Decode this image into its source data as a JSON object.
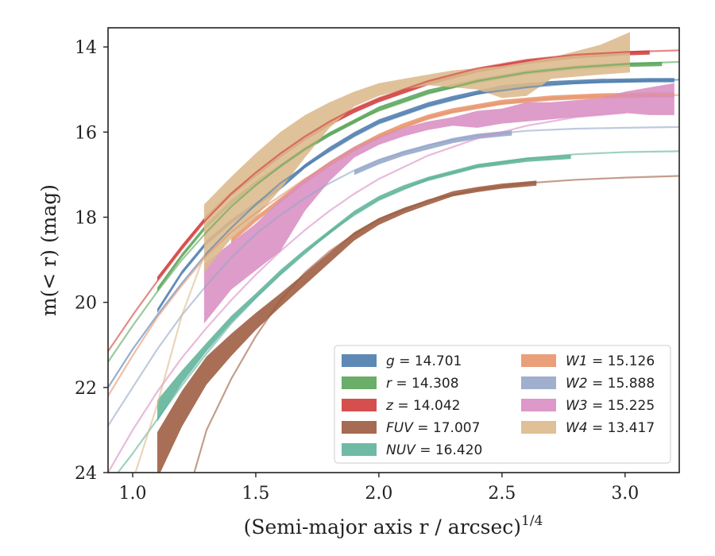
{
  "chart_data": {
    "type": "line",
    "xlabel": "(Semi-major axis r / arcsec)",
    "xlabel_sup": "1/4",
    "ylabel": "m(< r) (mag)",
    "xlim": [
      0.9,
      3.22
    ],
    "ylim": [
      24,
      13.55
    ],
    "y_inverted": true,
    "x_ticks": [
      1.0,
      1.5,
      2.0,
      2.5,
      3.0
    ],
    "x_tick_labels": [
      "1.0",
      "1.5",
      "2.0",
      "2.5",
      "3.0"
    ],
    "y_ticks": [
      14,
      16,
      18,
      20,
      22,
      24
    ],
    "y_tick_labels": [
      "14",
      "16",
      "18",
      "20",
      "22",
      "24"
    ],
    "grid": false,
    "legend_position": "lower-right",
    "legend": [
      {
        "key": "g",
        "var": "g",
        "value": "14.701"
      },
      {
        "key": "r",
        "var": "r",
        "value": "14.308"
      },
      {
        "key": "z",
        "var": "z",
        "value": "14.042"
      },
      {
        "key": "FUV",
        "var": "FUV",
        "value": "17.007"
      },
      {
        "key": "NUV",
        "var": "NUV",
        "value": "16.420"
      },
      {
        "key": "W1",
        "var": "W1",
        "value": "15.126"
      },
      {
        "key": "W2",
        "var": "W2",
        "value": "15.888"
      },
      {
        "key": "W3",
        "var": "W3",
        "value": "15.225"
      },
      {
        "key": "W4",
        "var": "W4",
        "value": "13.417"
      }
    ],
    "series": [
      {
        "key": "g",
        "color": "#4c7cad",
        "data_x": [
          1.1,
          1.2,
          1.3,
          1.4,
          1.5,
          1.6,
          1.7,
          1.8,
          1.9,
          2.0,
          2.1,
          2.2,
          2.3,
          2.5,
          2.7,
          2.9,
          3.1,
          3.2
        ],
        "data_y": [
          20.2,
          19.3,
          18.6,
          18.1,
          17.7,
          17.3,
          16.8,
          16.4,
          16.05,
          15.75,
          15.55,
          15.35,
          15.2,
          14.95,
          14.85,
          14.8,
          14.78,
          14.78
        ],
        "data_width": 0.05,
        "model_x": [
          0.9,
          1.0,
          1.1,
          1.2,
          1.3,
          1.4,
          1.5,
          1.6,
          1.7,
          1.8,
          1.9,
          2.0,
          2.2,
          2.4,
          2.6,
          2.8,
          3.0,
          3.22
        ],
        "model_y": [
          22.0,
          21.1,
          20.3,
          19.55,
          18.85,
          18.25,
          17.7,
          17.2,
          16.8,
          16.45,
          16.1,
          15.8,
          15.4,
          15.1,
          14.95,
          14.85,
          14.8,
          14.77
        ]
      },
      {
        "key": "r",
        "color": "#5aa559",
        "data_x": [
          1.1,
          1.2,
          1.3,
          1.4,
          1.5,
          1.6,
          1.7,
          1.8,
          1.9,
          2.0,
          2.2,
          2.4,
          2.6,
          2.8,
          3.0,
          3.15
        ],
        "data_y": [
          19.7,
          18.9,
          18.2,
          17.65,
          17.2,
          16.8,
          16.4,
          16.05,
          15.75,
          15.45,
          15.05,
          14.8,
          14.6,
          14.48,
          14.42,
          14.4
        ],
        "data_width": 0.05,
        "model_x": [
          0.9,
          1.0,
          1.1,
          1.2,
          1.3,
          1.4,
          1.5,
          1.6,
          1.7,
          1.8,
          1.9,
          2.0,
          2.2,
          2.4,
          2.6,
          2.8,
          3.0,
          3.22
        ],
        "model_y": [
          21.4,
          20.55,
          19.75,
          19.0,
          18.35,
          17.75,
          17.25,
          16.8,
          16.4,
          16.05,
          15.75,
          15.5,
          15.1,
          14.8,
          14.6,
          14.48,
          14.4,
          14.35
        ]
      },
      {
        "key": "z",
        "color": "#d23c3c",
        "data_x": [
          1.1,
          1.2,
          1.3,
          1.4,
          1.5,
          1.6,
          1.7,
          1.8,
          1.9,
          2.0,
          2.2,
          2.4,
          2.6,
          2.8,
          3.0,
          3.1
        ],
        "data_y": [
          19.45,
          18.7,
          18.0,
          17.45,
          17.0,
          16.55,
          16.15,
          15.8,
          15.5,
          15.25,
          14.85,
          14.55,
          14.35,
          14.22,
          14.15,
          14.13
        ],
        "data_width": 0.05,
        "model_x": [
          0.9,
          1.0,
          1.1,
          1.2,
          1.3,
          1.4,
          1.5,
          1.6,
          1.7,
          1.8,
          1.9,
          2.0,
          2.2,
          2.4,
          2.6,
          2.8,
          3.0,
          3.22
        ],
        "model_y": [
          21.15,
          20.3,
          19.5,
          18.75,
          18.05,
          17.45,
          16.95,
          16.5,
          16.1,
          15.75,
          15.45,
          15.2,
          14.8,
          14.5,
          14.3,
          14.18,
          14.12,
          14.08
        ]
      },
      {
        "key": "FUV",
        "color": "#9c5b3f",
        "data_x": [
          1.1,
          1.2,
          1.3,
          1.4,
          1.5,
          1.6,
          1.7,
          1.8,
          1.9,
          2.0,
          2.1,
          2.2,
          2.3,
          2.4,
          2.5,
          2.64
        ],
        "data_y": [
          23.6,
          22.5,
          21.6,
          21.0,
          20.45,
          19.95,
          19.45,
          18.95,
          18.45,
          18.1,
          17.85,
          17.65,
          17.45,
          17.35,
          17.27,
          17.2
        ],
        "data_width": [
          0.55,
          0.42,
          0.33,
          0.26,
          0.2,
          0.16,
          0.14,
          0.12,
          0.1,
          0.08,
          0.07,
          0.06,
          0.06,
          0.06,
          0.06,
          0.06
        ],
        "model_x": [
          1.25,
          1.3,
          1.4,
          1.5,
          1.6,
          1.7,
          1.8,
          1.9,
          2.0,
          2.2,
          2.4,
          2.6,
          2.8,
          3.0,
          3.22
        ],
        "model_y": [
          24.0,
          23.0,
          21.8,
          20.8,
          19.95,
          19.3,
          18.8,
          18.4,
          18.05,
          17.6,
          17.35,
          17.2,
          17.12,
          17.07,
          17.03
        ]
      },
      {
        "key": "NUV",
        "color": "#5fb39a",
        "data_x": [
          1.1,
          1.2,
          1.3,
          1.4,
          1.5,
          1.6,
          1.7,
          1.8,
          1.9,
          2.0,
          2.1,
          2.2,
          2.4,
          2.6,
          2.78
        ],
        "data_y": [
          22.55,
          21.75,
          21.05,
          20.4,
          19.85,
          19.3,
          18.8,
          18.35,
          17.9,
          17.55,
          17.3,
          17.1,
          16.8,
          16.65,
          16.58
        ],
        "data_width": [
          0.25,
          0.15,
          0.1,
          0.08,
          0.06,
          0.06,
          0.05,
          0.05,
          0.05,
          0.05,
          0.05,
          0.05,
          0.05,
          0.05,
          0.05
        ],
        "model_x": [
          0.9,
          1.0,
          1.1,
          1.2,
          1.3,
          1.4,
          1.5,
          1.6,
          1.7,
          1.8,
          1.9,
          2.0,
          2.2,
          2.4,
          2.6,
          2.8,
          3.0,
          3.22
        ],
        "model_y": [
          24.3,
          23.55,
          22.75,
          21.95,
          21.2,
          20.5,
          19.9,
          19.35,
          18.85,
          18.35,
          17.95,
          17.6,
          17.1,
          16.8,
          16.62,
          16.52,
          16.47,
          16.45
        ]
      },
      {
        "key": "W1",
        "color": "#e8956c",
        "data_x": [
          1.4,
          1.5,
          1.6,
          1.7,
          1.8,
          1.9,
          2.0,
          2.1,
          2.2,
          2.3,
          2.5,
          2.7,
          2.9,
          3.1,
          3.2
        ],
        "data_y": [
          18.55,
          18.05,
          17.6,
          17.15,
          16.75,
          16.4,
          16.1,
          15.85,
          15.65,
          15.5,
          15.3,
          15.2,
          15.15,
          15.13,
          15.13
        ],
        "data_width": 0.06,
        "model_x": [
          0.9,
          1.0,
          1.1,
          1.2,
          1.3,
          1.4,
          1.5,
          1.6,
          1.7,
          1.8,
          1.9,
          2.0,
          2.2,
          2.4,
          2.6,
          2.8,
          3.0,
          3.22
        ],
        "model_y": [
          22.2,
          21.25,
          20.35,
          19.6,
          18.9,
          18.35,
          17.9,
          17.5,
          17.1,
          16.75,
          16.4,
          16.1,
          15.65,
          15.4,
          15.25,
          15.17,
          15.14,
          15.13
        ]
      },
      {
        "key": "W2",
        "color": "#95a6c8",
        "data_x": [
          1.9,
          2.0,
          2.1,
          2.2,
          2.3,
          2.4,
          2.54
        ],
        "data_y": [
          16.95,
          16.7,
          16.5,
          16.35,
          16.2,
          16.1,
          16.02
        ],
        "data_width": 0.06,
        "model_x": [
          0.9,
          1.0,
          1.1,
          1.2,
          1.3,
          1.4,
          1.5,
          1.6,
          1.7,
          1.8,
          1.9,
          2.0,
          2.2,
          2.4,
          2.6,
          2.8,
          3.0,
          3.22
        ],
        "model_y": [
          22.9,
          22.0,
          21.1,
          20.3,
          19.6,
          18.95,
          18.4,
          17.95,
          17.55,
          17.2,
          16.9,
          16.65,
          16.3,
          16.08,
          15.97,
          15.92,
          15.9,
          15.88
        ]
      },
      {
        "key": "W3",
        "color": "#d98ec3",
        "data_x": [
          1.29,
          1.4,
          1.5,
          1.6,
          1.7,
          1.8,
          1.9,
          2.0,
          2.1,
          2.2,
          2.3,
          2.4,
          2.5,
          2.6,
          2.7,
          2.8,
          2.9,
          3.0,
          3.1,
          3.2
        ],
        "data_upper": [
          19.1,
          18.6,
          18.15,
          17.6,
          17.1,
          16.7,
          16.35,
          16.1,
          15.9,
          15.75,
          15.65,
          15.5,
          15.45,
          15.3,
          15.3,
          15.25,
          15.2,
          15.05,
          14.95,
          14.85
        ],
        "data_lower": [
          20.5,
          19.7,
          19.25,
          18.8,
          17.85,
          17.15,
          16.6,
          16.3,
          16.1,
          15.95,
          15.85,
          15.9,
          15.8,
          15.75,
          15.7,
          15.65,
          15.6,
          15.55,
          15.6,
          15.6
        ],
        "model_x": [
          0.9,
          1.0,
          1.1,
          1.2,
          1.3,
          1.4,
          1.5,
          1.6,
          1.7,
          1.8,
          1.9,
          2.0,
          2.2,
          2.4,
          2.6,
          2.8,
          3.0
        ],
        "model_y": [
          24.0,
          23.0,
          22.1,
          21.3,
          20.6,
          19.95,
          19.35,
          18.8,
          18.3,
          17.85,
          17.45,
          17.1,
          16.55,
          16.15,
          15.85,
          15.65,
          15.55
        ]
      },
      {
        "key": "W4",
        "color": "#dcb98c",
        "data_x": [
          1.29,
          1.4,
          1.5,
          1.6,
          1.7,
          1.8,
          1.9,
          2.0,
          2.1,
          2.2,
          2.3,
          2.4,
          2.5,
          2.6,
          2.7,
          2.8,
          2.9,
          3.02
        ],
        "data_upper": [
          17.7,
          17.05,
          16.5,
          16.0,
          15.6,
          15.3,
          15.05,
          14.85,
          14.75,
          14.65,
          14.55,
          14.5,
          14.45,
          14.35,
          14.25,
          14.1,
          13.95,
          13.65
        ],
        "data_lower": [
          19.3,
          18.5,
          18.0,
          17.35,
          16.6,
          15.9,
          15.4,
          15.15,
          15.0,
          14.9,
          14.95,
          15.0,
          15.2,
          15.15,
          14.75,
          14.7,
          14.65,
          14.6
        ],
        "model_x": [
          1.0,
          1.1,
          1.2,
          1.29
        ],
        "model_y": [
          24.2,
          22.4,
          20.3,
          18.9
        ]
      }
    ]
  }
}
